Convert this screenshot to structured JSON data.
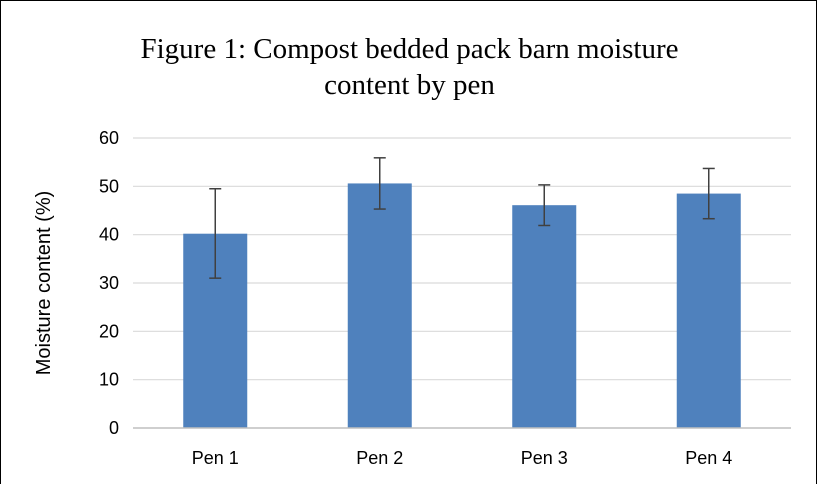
{
  "chart_data": {
    "type": "bar",
    "title_lines": [
      "Figure 1: Compost bedded pack barn moisture",
      "content by pen"
    ],
    "xlabel": "",
    "ylabel": "Moisture content (%)",
    "categories": [
      "Pen 1",
      "Pen 2",
      "Pen 3",
      "Pen 4"
    ],
    "values": [
      40.2,
      50.6,
      46.1,
      48.5
    ],
    "error_high": [
      49.5,
      55.9,
      50.3,
      53.7
    ],
    "error_low": [
      31.0,
      45.3,
      41.9,
      43.3
    ],
    "ylim": [
      0,
      60
    ],
    "yticks": [
      0,
      10,
      20,
      30,
      40,
      50,
      60
    ],
    "grid": true,
    "legend": "none",
    "bar_color": "#4f81bd",
    "grid_color": "#d9d9d9",
    "error_bar_color": "#404040"
  }
}
